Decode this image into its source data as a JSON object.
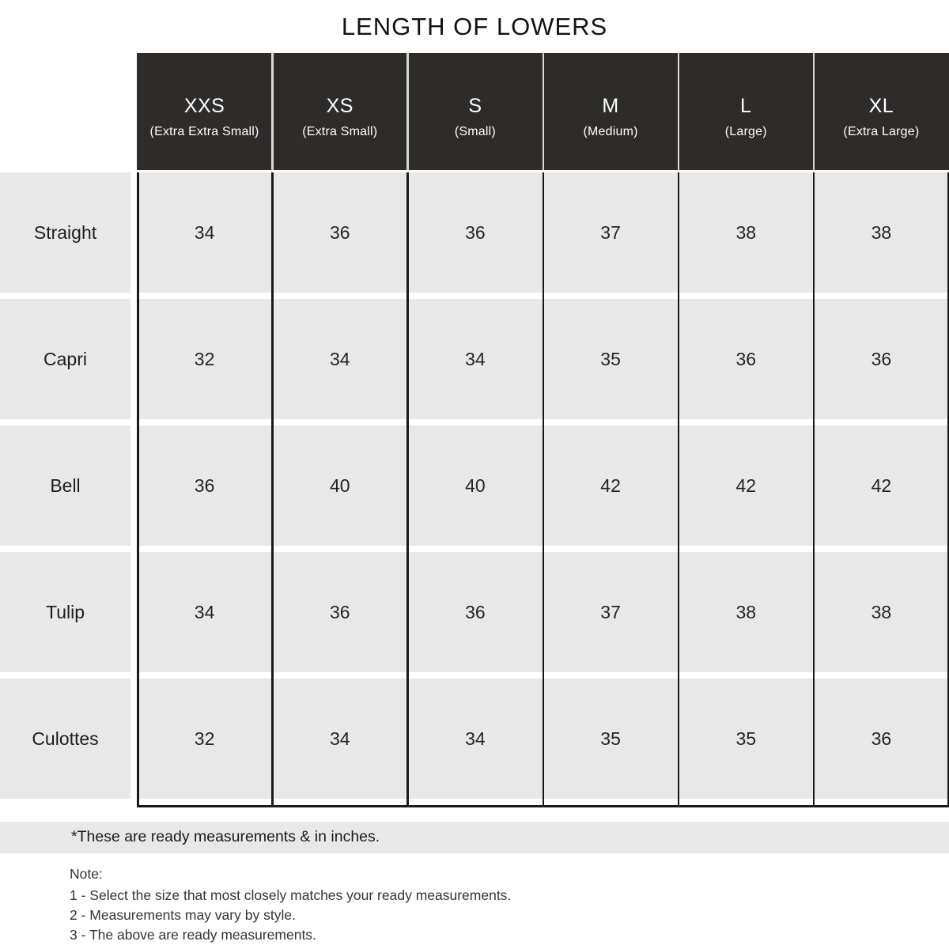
{
  "title": "LENGTH OF LOWERS",
  "chart_data": {
    "type": "table",
    "title": "LENGTH OF LOWERS",
    "columns": [
      "XXS (Extra Extra Small)",
      "XS (Extra Small)",
      "S (Small)",
      "M (Medium)",
      "L (Large)",
      "XL (Extra Large)"
    ],
    "rows": [
      {
        "style": "Straight",
        "values": [
          34,
          36,
          36,
          37,
          38,
          38
        ]
      },
      {
        "style": "Capri",
        "values": [
          32,
          34,
          34,
          35,
          36,
          36
        ]
      },
      {
        "style": "Bell",
        "values": [
          36,
          40,
          40,
          42,
          42,
          42
        ]
      },
      {
        "style": "Tulip",
        "values": [
          34,
          36,
          36,
          37,
          38,
          38
        ]
      },
      {
        "style": "Culottes",
        "values": [
          32,
          34,
          34,
          35,
          35,
          36
        ]
      }
    ],
    "unit": "inches"
  },
  "table": {
    "columns": [
      {
        "size": "XXS",
        "label": "(Extra Extra Small)"
      },
      {
        "size": "XS",
        "label": "(Extra Small)"
      },
      {
        "size": "S",
        "label": "(Small)"
      },
      {
        "size": "M",
        "label": "(Medium)"
      },
      {
        "size": "L",
        "label": "(Large)"
      },
      {
        "size": "XL",
        "label": "(Extra Large)"
      }
    ],
    "rows": [
      {
        "style": "Straight",
        "values": [
          "34",
          "36",
          "36",
          "37",
          "38",
          "38"
        ]
      },
      {
        "style": "Capri",
        "values": [
          "32",
          "34",
          "34",
          "35",
          "36",
          "36"
        ]
      },
      {
        "style": "Bell",
        "values": [
          "36",
          "40",
          "40",
          "42",
          "42",
          "42"
        ]
      },
      {
        "style": "Tulip",
        "values": [
          "34",
          "36",
          "36",
          "37",
          "38",
          "38"
        ]
      },
      {
        "style": "Culottes",
        "values": [
          "32",
          "34",
          "34",
          "35",
          "35",
          "36"
        ]
      }
    ]
  },
  "footnote": "*These are ready measurements & in inches.",
  "notes": {
    "heading": "Note:",
    "items": [
      "1 - Select the size that most closely matches your ready measurements.",
      "2 - Measurements may vary by style.",
      "3 - The above are ready measurements."
    ]
  },
  "colors": {
    "header_bg": "#2d2c2b",
    "row_bg": "#e9e8e8",
    "line": "#1a1a19",
    "header_sep": "#d9d9d9",
    "text": "#1f1f1f",
    "note_text": "#343434"
  }
}
